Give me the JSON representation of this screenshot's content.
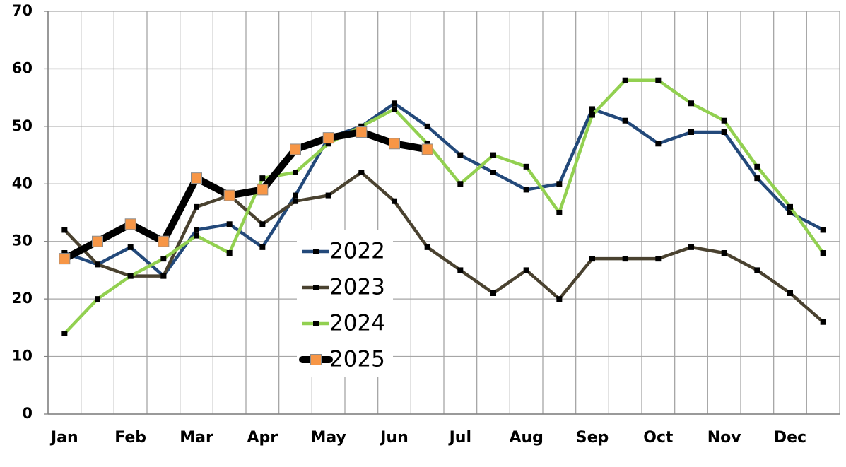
{
  "chart_data": {
    "type": "line",
    "categories": [
      "Jan",
      null,
      "Feb",
      null,
      "Mar",
      null,
      "Apr",
      null,
      "May",
      null,
      "Jun",
      null,
      "Jul",
      null,
      "Aug",
      null,
      "Sep",
      null,
      "Oct",
      null,
      "Nov",
      null,
      "Dec",
      null
    ],
    "series": [
      {
        "name": "2022",
        "color": "#23497a",
        "marker_color": "#000000",
        "values": [
          28,
          26,
          29,
          24,
          32,
          33,
          29,
          38,
          48,
          50,
          54,
          50,
          45,
          42,
          39,
          40,
          53,
          51,
          47,
          49,
          49,
          41,
          35,
          32
        ]
      },
      {
        "name": "2023",
        "color": "#4a4230",
        "marker_color": "#000000",
        "values": [
          32,
          26,
          24,
          24,
          36,
          38,
          33,
          37,
          38,
          42,
          37,
          29,
          25,
          21,
          25,
          20,
          27,
          27,
          27,
          29,
          28,
          25,
          21,
          16
        ]
      },
      {
        "name": "2024",
        "color": "#92d050",
        "marker_color": "#000000",
        "values": [
          14,
          20,
          24,
          27,
          31,
          28,
          41,
          42,
          47,
          50,
          53,
          47,
          40,
          45,
          43,
          35,
          52,
          58,
          58,
          54,
          51,
          43,
          36,
          28
        ]
      },
      {
        "name": "2025",
        "color": "#000000",
        "marker_color": "#f79646",
        "values": [
          27,
          30,
          33,
          30,
          41,
          38,
          39,
          46,
          48,
          49,
          47,
          46,
          null,
          null,
          null,
          null,
          null,
          null,
          null,
          null,
          null,
          null,
          null,
          null
        ]
      }
    ],
    "ylim": [
      0,
      70
    ],
    "yticks": [
      0,
      10,
      20,
      30,
      40,
      50,
      60,
      70
    ],
    "grid": true,
    "legend": "center"
  }
}
